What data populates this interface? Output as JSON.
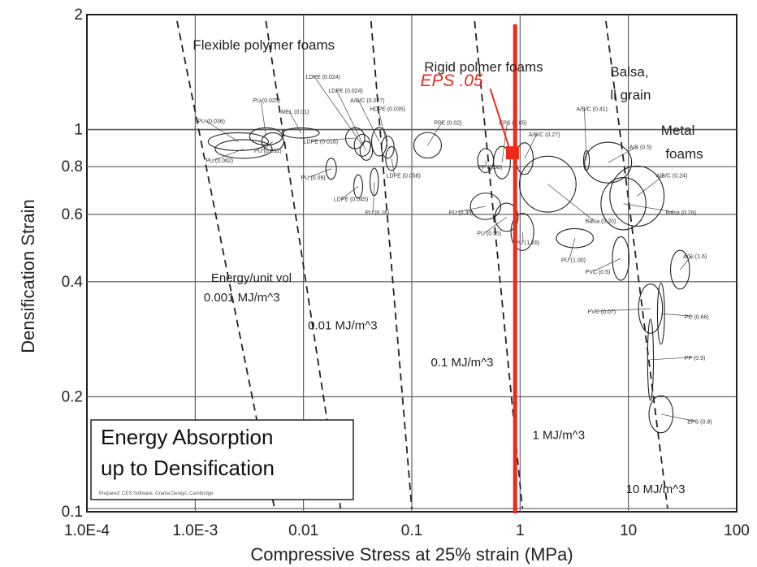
{
  "chart_data": {
    "type": "scatter",
    "title": "Energy Absorption up to Densification",
    "title_lines": [
      "Energy Absorption",
      "up to Densification"
    ],
    "credit": "Prepared: CES Software, Granta Design, Cambridge",
    "xlabel": "Compressive Stress at 25% strain (MPa)",
    "ylabel": "Densification Strain",
    "xscale": "log",
    "yscale": "log",
    "xlim": [
      0.0001,
      100
    ],
    "ylim": [
      0.1,
      2
    ],
    "x_ticks": [
      {
        "v": 0.0001,
        "label": "1.0E-4"
      },
      {
        "v": 0.001,
        "label": "1.0E-3"
      },
      {
        "v": 0.01,
        "label": "0.01"
      },
      {
        "v": 0.1,
        "label": "0.1"
      },
      {
        "v": 1,
        "label": "1"
      },
      {
        "v": 10,
        "label": "10"
      },
      {
        "v": 100,
        "label": "100"
      }
    ],
    "y_ticks": [
      {
        "v": 0.1,
        "label": "0.1"
      },
      {
        "v": 0.2,
        "label": "0.2"
      },
      {
        "v": 0.4,
        "label": "0.4"
      },
      {
        "v": 0.6,
        "label": "0.6"
      },
      {
        "v": 0.8,
        "label": "0.8"
      },
      {
        "v": 1,
        "label": "1"
      },
      {
        "v": 2,
        "label": "2"
      }
    ],
    "grid": true,
    "group_labels": [
      {
        "text": "Flexible polymer foams",
        "x": 0.00095,
        "y": 1.62
      },
      {
        "text": "Rigid polmer foams",
        "x": 0.13,
        "y": 1.42
      },
      {
        "text": "Balsa,",
        "x": 6.8,
        "y": 1.38
      },
      {
        "text": "ll grain",
        "x": 6.8,
        "y": 1.2
      },
      {
        "text": "Metal",
        "x": 20,
        "y": 0.97
      },
      {
        "text": "foams",
        "x": 22,
        "y": 0.84
      }
    ],
    "energy_lines": [
      {
        "label": "Energy/unit vol",
        "value_label": "0.001 MJ/m^3",
        "x_top": 0.00068,
        "x_bottom": 0.0054,
        "lx": 0.0014,
        "ly": 0.4,
        "lx2": 0.0012,
        "ly2": 0.355
      },
      {
        "value_label": "0.01 MJ/m^3",
        "x_top": 0.0045,
        "x_bottom": 0.022,
        "lx": 0.011,
        "ly": 0.3
      },
      {
        "value_label": "0.1 MJ/m^3",
        "x_top": 0.042,
        "x_bottom": 0.1,
        "lx": 0.15,
        "ly": 0.24
      },
      {
        "value_label": "1 MJ/m^3",
        "x_top": 0.38,
        "x_bottom": 1.05,
        "lx": 1.3,
        "ly": 0.155
      },
      {
        "value_label": "10 MJ/m^3",
        "x_top": 6.2,
        "x_bottom": 23,
        "lx": 9.5,
        "ly": 0.112
      }
    ],
    "highlight": {
      "label": "EPS .05",
      "x": 0.85,
      "y": 0.87,
      "color": "#ee2a1b",
      "line_x": 0.9
    },
    "materials": [
      {
        "label": "PU (0.036)",
        "x": 0.0025,
        "y": 0.93,
        "w": 0.002,
        "h": 0.05,
        "lx": 0.00105,
        "ly": 1.04
      },
      {
        "label": "PU (0.062)",
        "x": 0.0028,
        "y": 0.89,
        "w": 0.0019,
        "h": 0.05,
        "lx": 0.00125,
        "ly": 0.82
      },
      {
        "label": "PU (0.025)",
        "x": 0.0045,
        "y": 0.96,
        "w": 0.0015,
        "h": 0.05,
        "lx": 0.0034,
        "ly": 1.18
      },
      {
        "label": "PU (0.032)",
        "x": 0.0052,
        "y": 0.93,
        "w": 0.0012,
        "h": 0.05,
        "lx": 0.0035,
        "ly": 0.87
      },
      {
        "label": "MEL (0.01)",
        "x": 0.0095,
        "y": 0.98,
        "w": 0.0035,
        "h": 0.03,
        "lx": 0.0062,
        "ly": 1.1
      },
      {
        "label": "LDPE (0.018)",
        "x": 0.03,
        "y": 0.95,
        "w": 0.006,
        "h": 0.06,
        "lx": 0.01,
        "ly": 0.92
      },
      {
        "label": "LDPE (0.024)",
        "x": 0.035,
        "y": 0.91,
        "w": 0.006,
        "h": 0.06,
        "lx": 0.0105,
        "ly": 1.36
      },
      {
        "label": "LDPE (0.024)",
        "x": 0.038,
        "y": 0.88,
        "w": 0.005,
        "h": 0.05,
        "lx": 0.017,
        "ly": 1.25
      },
      {
        "label": "A/B/C (0.027)",
        "x": 0.05,
        "y": 0.93,
        "w": 0.008,
        "h": 0.08,
        "lx": 0.027,
        "ly": 1.18
      },
      {
        "label": "HDPE (0.035)",
        "x": 0.06,
        "y": 0.9,
        "w": 0.008,
        "h": 0.06,
        "lx": 0.041,
        "ly": 1.12
      },
      {
        "label": "LDPE (0.058)",
        "x": 0.065,
        "y": 0.84,
        "w": 0.008,
        "h": 0.06,
        "lx": 0.058,
        "ly": 0.75
      },
      {
        "label": "PU (0.09)",
        "x": 0.018,
        "y": 0.79,
        "w": 0.002,
        "h": 0.05,
        "lx": 0.0095,
        "ly": 0.74
      },
      {
        "label": "LDPE (0.045)",
        "x": 0.032,
        "y": 0.71,
        "w": 0.003,
        "h": 0.05,
        "lx": 0.019,
        "ly": 0.65
      },
      {
        "label": "PU (0.16)",
        "x": 0.045,
        "y": 0.73,
        "w": 0.004,
        "h": 0.06,
        "lx": 0.037,
        "ly": 0.6
      },
      {
        "label": "PPE (0.02)",
        "x": 0.14,
        "y": 0.91,
        "w": 0.04,
        "h": 0.07,
        "lx": 0.16,
        "ly": 1.03
      },
      {
        "label": "EPS (0.05)",
        "x": 0.68,
        "y": 0.82,
        "w": 0.12,
        "h": 0.08,
        "lx": 0.64,
        "ly": 1.03
      },
      {
        "label": "A/B/C (0.27)",
        "x": 1.1,
        "y": 0.84,
        "w": 0.2,
        "h": 0.08,
        "lx": 1.2,
        "ly": 0.96
      },
      {
        "label": "PP (0.08)",
        "x": 0.48,
        "y": 0.83,
        "w": 0.08,
        "h": 0.06,
        "lx": 0.41,
        "ly": 0.79
      },
      {
        "label": "PU (0.35)",
        "x": 0.48,
        "y": 0.63,
        "w": 0.15,
        "h": 0.05,
        "lx": 0.22,
        "ly": 0.6
      },
      {
        "label": "PU (0.55)",
        "x": 0.75,
        "y": 0.59,
        "w": 0.18,
        "h": 0.05,
        "lx": 0.4,
        "ly": 0.53
      },
      {
        "label": "PU (1.26)",
        "x": 1.05,
        "y": 0.54,
        "w": 0.25,
        "h": 0.06,
        "lx": 0.9,
        "ly": 0.5
      },
      {
        "label": "PU (1.00)",
        "x": 3.2,
        "y": 0.52,
        "w": 1.2,
        "h": 0.03,
        "lx": 2.4,
        "ly": 0.45
      },
      {
        "label": "Balsa (0.20)",
        "x": 1.8,
        "y": 0.72,
        "w": 1.2,
        "h": 0.12,
        "lx": 4.0,
        "ly": 0.57
      },
      {
        "label": "A/B/C (0.41)",
        "x": 4.1,
        "y": 0.83,
        "w": 0.25,
        "h": 0.05,
        "lx": 3.3,
        "ly": 1.12
      },
      {
        "label": "A/S (0.5)",
        "x": 6.5,
        "y": 0.82,
        "w": 3.0,
        "h": 0.1,
        "lx": 10.2,
        "ly": 0.89
      },
      {
        "label": "A/B/C (0.24)",
        "x": 12,
        "y": 0.67,
        "w": 7.0,
        "h": 0.12,
        "lx": 18,
        "ly": 0.75
      },
      {
        "label": "Balsa (0.28)",
        "x": 9,
        "y": 0.64,
        "w": 4.0,
        "h": 0.1,
        "lx": 22,
        "ly": 0.6
      },
      {
        "label": "PVC (0.5)",
        "x": 8.5,
        "y": 0.46,
        "w": 1.5,
        "h": 0.06,
        "lx": 4.0,
        "ly": 0.42
      },
      {
        "label": "A/Si (1.6)",
        "x": 30,
        "y": 0.43,
        "w": 6.0,
        "h": 0.05,
        "lx": 32,
        "ly": 0.46
      },
      {
        "label": "PVC (0.07)",
        "x": 16,
        "y": 0.34,
        "w": 4.0,
        "h": 0.05,
        "lx": 4.2,
        "ly": 0.33
      },
      {
        "label": "PC (0.66)",
        "x": 20,
        "y": 0.33,
        "w": 1.5,
        "h": 0.06,
        "lx": 33,
        "ly": 0.32
      },
      {
        "label": "PP (0.9)",
        "x": 16,
        "y": 0.25,
        "w": 1.0,
        "h": 0.06,
        "lx": 33,
        "ly": 0.25
      },
      {
        "label": "EPS (0.8)",
        "x": 20,
        "y": 0.18,
        "w": 5.0,
        "h": 0.02,
        "lx": 35,
        "ly": 0.17
      }
    ]
  }
}
